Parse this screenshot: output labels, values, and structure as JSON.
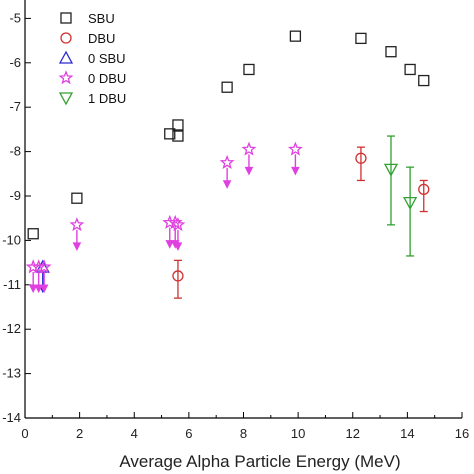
{
  "chart_data": {
    "type": "scatter",
    "xlabel": "Average Alpha Particle Energy (MeV)",
    "xlim": [
      0,
      16
    ],
    "x_ticks": [
      0,
      2,
      4,
      6,
      8,
      10,
      12,
      14,
      16
    ],
    "ylim": [
      -14,
      -4
    ],
    "y_scale": "log",
    "y_tick_labels": [
      "-5",
      "-6",
      "-7",
      "-8",
      "-9",
      "-10",
      "-11",
      "-12",
      "-13",
      "-14"
    ],
    "y_tick_values": [
      -5,
      -6,
      -7,
      -8,
      -9,
      -10,
      -11,
      -12,
      -13,
      -14
    ],
    "legend_position": "top-left",
    "series": [
      {
        "name": "SBU",
        "marker": "square",
        "color": "#222222",
        "points": [
          {
            "x": 0.3,
            "y": -9.85
          },
          {
            "x": 1.9,
            "y": -9.05
          },
          {
            "x": 5.3,
            "y": -7.6
          },
          {
            "x": 5.6,
            "y": -7.65
          },
          {
            "x": 5.6,
            "y": -7.4
          },
          {
            "x": 7.4,
            "y": -6.55
          },
          {
            "x": 8.2,
            "y": -6.15
          },
          {
            "x": 9.9,
            "y": -5.4
          },
          {
            "x": 12.3,
            "y": -5.45
          },
          {
            "x": 13.4,
            "y": -5.75
          },
          {
            "x": 14.1,
            "y": -6.15
          },
          {
            "x": 14.6,
            "y": -6.4
          }
        ]
      },
      {
        "name": "DBU",
        "marker": "circle",
        "color": "#d03030",
        "points": [
          {
            "x": 5.6,
            "y": -10.8,
            "y_lo": -11.3,
            "y_hi": -10.45
          },
          {
            "x": 12.3,
            "y": -8.15,
            "y_lo": -8.65,
            "y_hi": -7.9
          },
          {
            "x": 14.6,
            "y": -8.85,
            "y_lo": -9.35,
            "y_hi": -8.65
          }
        ]
      },
      {
        "name": "0 SBU",
        "marker": "triangle-up",
        "color": "#2a2ad0",
        "upper_limit": true,
        "points": [
          {
            "x": 0.65,
            "y": -10.6
          }
        ]
      },
      {
        "name": "0 DBU",
        "marker": "star",
        "color": "#e040e0",
        "upper_limit": true,
        "points": [
          {
            "x": 0.3,
            "y": -10.6
          },
          {
            "x": 0.5,
            "y": -10.6
          },
          {
            "x": 0.7,
            "y": -10.6
          },
          {
            "x": 1.9,
            "y": -9.65
          },
          {
            "x": 5.3,
            "y": -9.6
          },
          {
            "x": 5.5,
            "y": -9.6
          },
          {
            "x": 5.6,
            "y": -9.65
          },
          {
            "x": 7.4,
            "y": -8.25
          },
          {
            "x": 8.2,
            "y": -7.95
          },
          {
            "x": 9.9,
            "y": -7.95
          }
        ]
      },
      {
        "name": "1 DBU",
        "marker": "triangle-down",
        "color": "#30a030",
        "points": [
          {
            "x": 13.4,
            "y": -8.4,
            "y_lo": -9.65,
            "y_hi": -7.65
          },
          {
            "x": 14.1,
            "y": -9.15,
            "y_lo": -10.35,
            "y_hi": -8.35
          }
        ]
      }
    ]
  }
}
